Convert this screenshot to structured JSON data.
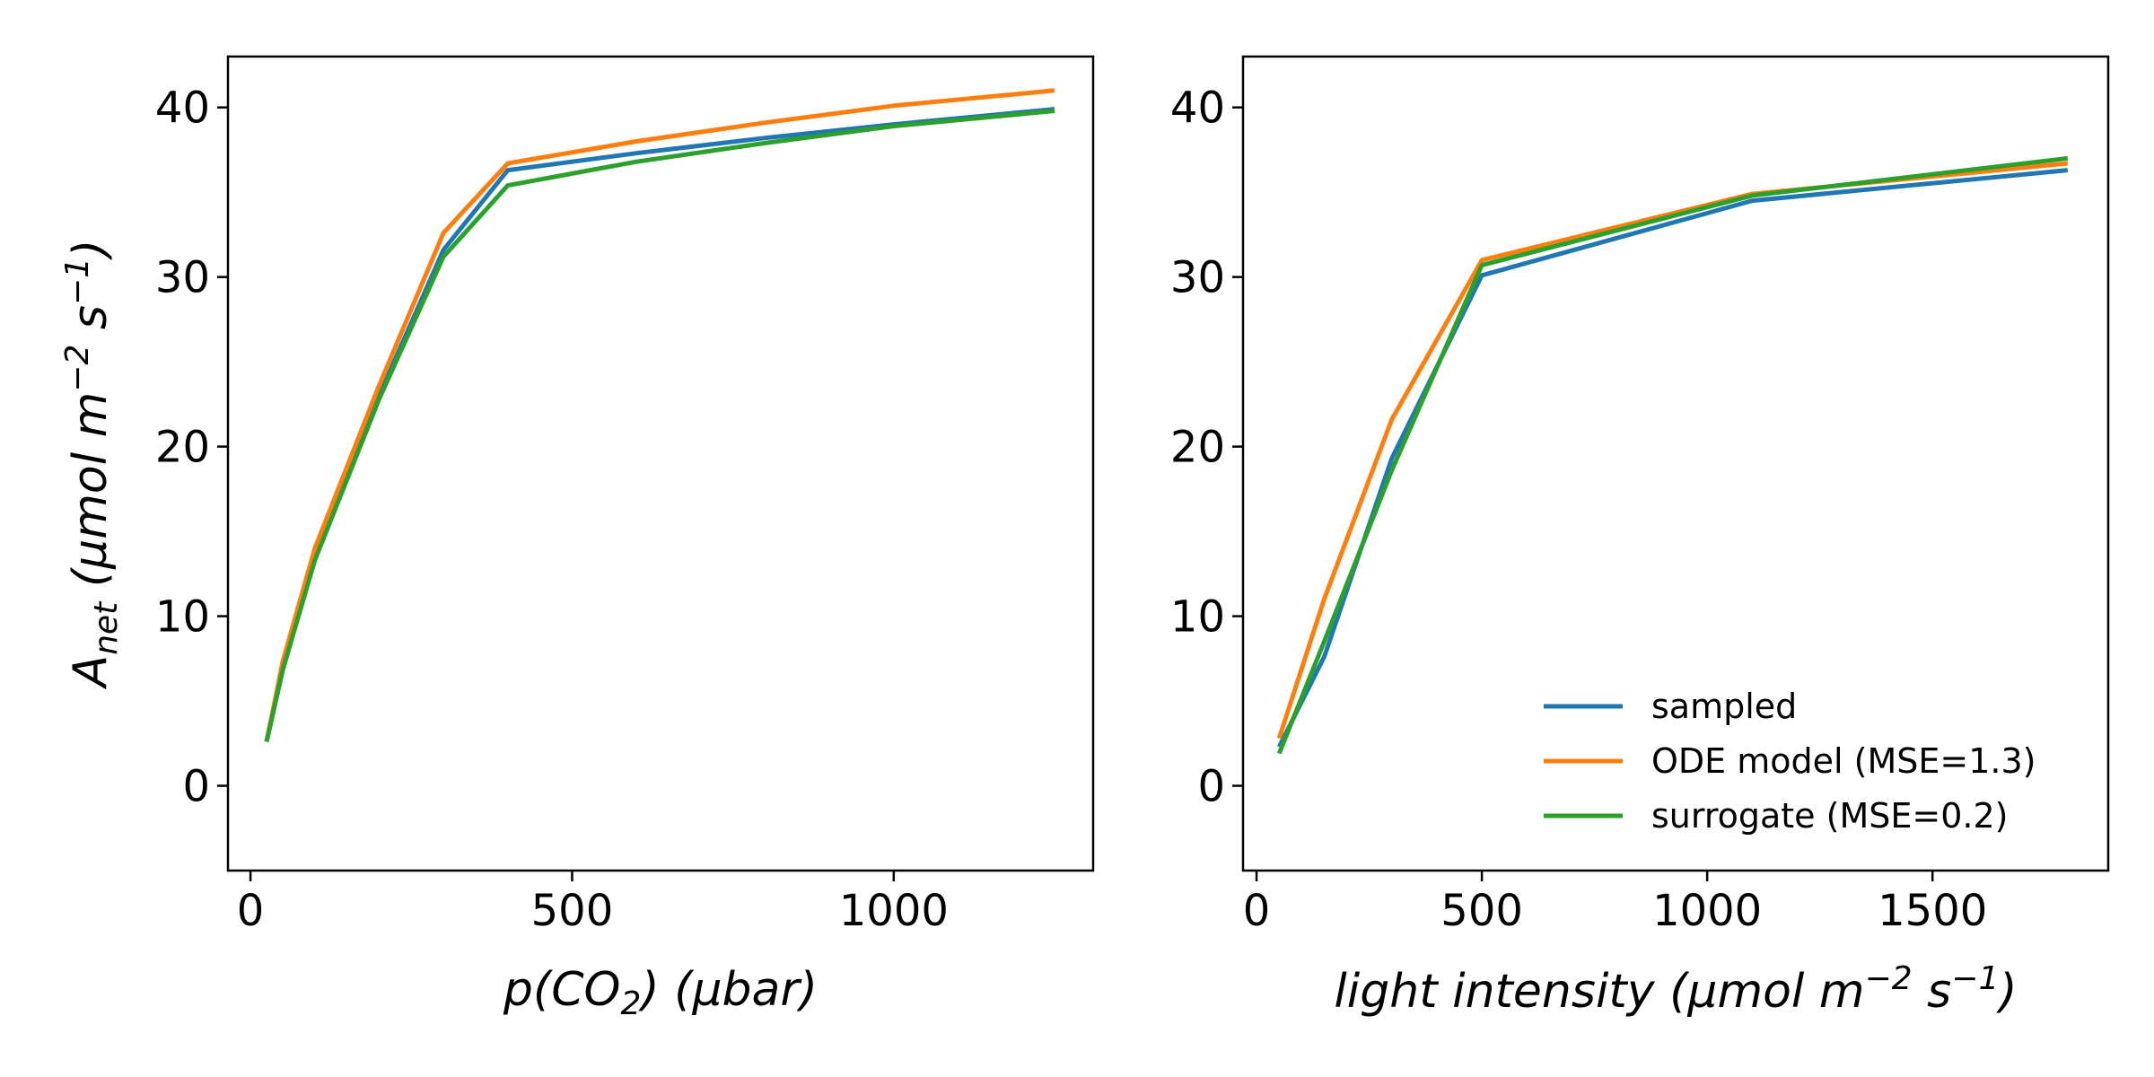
{
  "chart_data": [
    {
      "type": "line",
      "xlabel": "p(CO₂) (μbar)",
      "ylabel": "A_net (μmol m⁻² s⁻¹)",
      "xlim": [
        -35,
        1310
      ],
      "ylim": [
        -5,
        43
      ],
      "xticks": [
        0,
        500,
        1000
      ],
      "yticks": [
        0,
        10,
        20,
        30,
        40
      ],
      "grid": false,
      "series": [
        {
          "name": "sampled",
          "color": "#1f77b4",
          "points": [
            [
              25,
              2.6
            ],
            [
              50,
              6.8
            ],
            [
              100,
              13.5
            ],
            [
              200,
              23.0
            ],
            [
              300,
              31.6
            ],
            [
              400,
              36.3
            ],
            [
              600,
              37.3
            ],
            [
              800,
              38.2
            ],
            [
              1000,
              39.0
            ],
            [
              1250,
              39.9
            ]
          ]
        },
        {
          "name": "ODE model (MSE=1.3)",
          "color": "#ff7f0e",
          "points": [
            [
              25,
              2.6
            ],
            [
              50,
              7.3
            ],
            [
              100,
              14.0
            ],
            [
              200,
              23.6
            ],
            [
              300,
              32.6
            ],
            [
              400,
              36.7
            ],
            [
              600,
              38.0
            ],
            [
              800,
              39.1
            ],
            [
              1000,
              40.1
            ],
            [
              1250,
              41.0
            ]
          ]
        },
        {
          "name": "surrogate (MSE=0.2)",
          "color": "#2ca02c",
          "points": [
            [
              25,
              2.6
            ],
            [
              50,
              6.8
            ],
            [
              100,
              13.3
            ],
            [
              200,
              22.8
            ],
            [
              300,
              31.2
            ],
            [
              400,
              35.4
            ],
            [
              600,
              36.8
            ],
            [
              800,
              37.9
            ],
            [
              1000,
              38.9
            ],
            [
              1250,
              39.8
            ]
          ]
        }
      ]
    },
    {
      "type": "line",
      "xlabel": "light intensity (μmol m⁻² s⁻¹)",
      "ylabel": "",
      "xlim": [
        -30,
        1890
      ],
      "ylim": [
        -5,
        43
      ],
      "xticks": [
        0,
        500,
        1000,
        1500
      ],
      "yticks": [
        0,
        10,
        20,
        30,
        40
      ],
      "grid": false,
      "legend_position": "lower-right",
      "series": [
        {
          "name": "sampled",
          "color": "#1f77b4",
          "points": [
            [
              50,
              2.3
            ],
            [
              150,
              7.6
            ],
            [
              300,
              19.3
            ],
            [
              500,
              30.1
            ],
            [
              1100,
              34.5
            ],
            [
              1800,
              36.3
            ]
          ]
        },
        {
          "name": "ODE model (MSE=1.3)",
          "color": "#ff7f0e",
          "points": [
            [
              50,
              2.8
            ],
            [
              150,
              11.0
            ],
            [
              300,
              21.6
            ],
            [
              500,
              31.0
            ],
            [
              1100,
              34.9
            ],
            [
              1800,
              36.7
            ]
          ]
        },
        {
          "name": "surrogate (MSE=0.2)",
          "color": "#2ca02c",
          "points": [
            [
              50,
              1.9
            ],
            [
              150,
              8.5
            ],
            [
              300,
              18.6
            ],
            [
              500,
              30.7
            ],
            [
              1100,
              34.8
            ],
            [
              1800,
              37.0
            ]
          ]
        }
      ]
    }
  ]
}
